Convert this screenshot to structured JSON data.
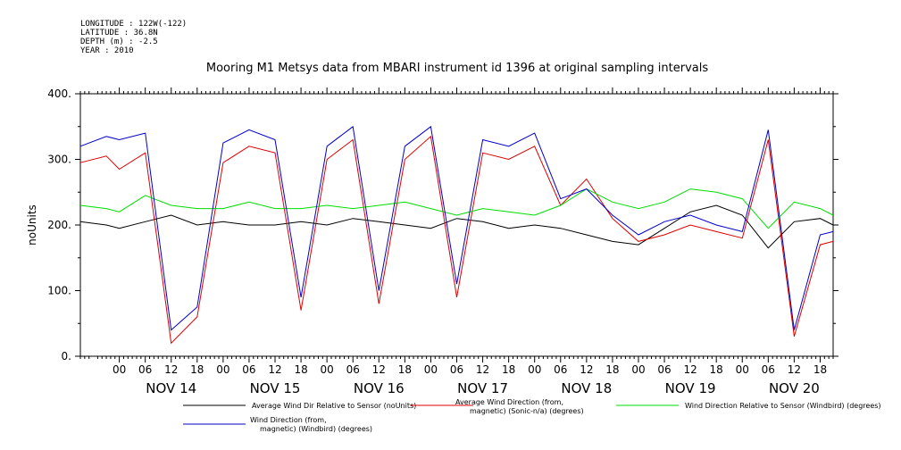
{
  "meta": {
    "longitude": "LONGITUDE : 122W(-122)",
    "latitude": "LATITUDE : 36.8N",
    "depth": "DEPTH (m) : -2.5",
    "year": "YEAR : 2010"
  },
  "chart_data": {
    "type": "line",
    "title": "Mooring M1 Metsys data from MBARI instrument id 1396 at original sampling intervals",
    "ylabel": "noUnits",
    "xlabel": "",
    "ylim": [
      0,
      400
    ],
    "y_ticks": [
      0,
      100,
      200,
      300,
      400
    ],
    "y_tick_labels": [
      "0.",
      "100.",
      "200.",
      "300.",
      "400."
    ],
    "x_range_hours": [
      -9,
      165
    ],
    "x_tick_labels": [
      "00",
      "06",
      "12",
      "18",
      "00",
      "06",
      "12",
      "18",
      "00",
      "06",
      "12",
      "18",
      "00",
      "06",
      "12",
      "18",
      "00",
      "06",
      "12",
      "18",
      "00",
      "06",
      "12",
      "18",
      "00",
      "06",
      "12",
      "18"
    ],
    "day_labels": [
      "NOV 14",
      "NOV 15",
      "NOV 16",
      "NOV 17",
      "NOV 18",
      "NOV 19",
      "NOV 20"
    ],
    "grid": false,
    "legend_position": "bottom",
    "series": [
      {
        "name": "Average Wind Dir Relative to Sensor (noUnits)",
        "color": "#000000",
        "x": [
          -9,
          -3,
          0,
          6,
          12,
          18,
          24,
          30,
          36,
          42,
          48,
          54,
          60,
          66,
          72,
          78,
          84,
          90,
          96,
          102,
          108,
          114,
          120,
          126,
          132,
          138,
          144,
          150,
          156,
          162,
          165
        ],
        "y": [
          205,
          200,
          195,
          205,
          215,
          200,
          205,
          200,
          200,
          205,
          200,
          210,
          205,
          200,
          195,
          210,
          205,
          195,
          200,
          195,
          185,
          175,
          170,
          195,
          220,
          230,
          215,
          165,
          205,
          210,
          200
        ]
      },
      {
        "name": "Average Wind Direction (from, magnetic) (Sonic-n/a) (degrees)",
        "color": "#dd0000",
        "x": [
          -9,
          -3,
          0,
          6,
          12,
          18,
          24,
          30,
          36,
          42,
          48,
          54,
          60,
          66,
          72,
          78,
          84,
          90,
          96,
          102,
          108,
          114,
          120,
          126,
          132,
          138,
          144,
          150,
          156,
          162,
          165
        ],
        "y": [
          295,
          305,
          285,
          310,
          20,
          60,
          295,
          320,
          310,
          70,
          300,
          330,
          80,
          300,
          335,
          90,
          310,
          300,
          320,
          230,
          270,
          210,
          175,
          185,
          200,
          190,
          180,
          330,
          30,
          170,
          175
        ]
      },
      {
        "name": "Wind Direction Relative to Sensor (Windbird) (degrees)",
        "color": "#00dd00",
        "x": [
          -9,
          -3,
          0,
          6,
          12,
          18,
          24,
          30,
          36,
          42,
          48,
          54,
          60,
          66,
          72,
          78,
          84,
          90,
          96,
          102,
          108,
          114,
          120,
          126,
          132,
          138,
          144,
          150,
          156,
          162,
          165
        ],
        "y": [
          230,
          225,
          220,
          245,
          230,
          225,
          225,
          235,
          225,
          225,
          230,
          225,
          230,
          235,
          225,
          215,
          225,
          220,
          215,
          230,
          255,
          235,
          225,
          235,
          255,
          250,
          240,
          195,
          235,
          225,
          215
        ]
      },
      {
        "name": "Wind Direction (from, magnetic) (Windbird) (degrees)",
        "color": "#0000cc",
        "x": [
          -9,
          -3,
          0,
          6,
          12,
          18,
          24,
          30,
          36,
          42,
          48,
          54,
          60,
          66,
          72,
          78,
          84,
          90,
          96,
          102,
          108,
          114,
          120,
          126,
          132,
          138,
          144,
          150,
          156,
          162,
          165
        ],
        "y": [
          320,
          335,
          330,
          340,
          40,
          75,
          325,
          345,
          330,
          90,
          320,
          350,
          100,
          320,
          350,
          110,
          330,
          320,
          340,
          240,
          255,
          215,
          185,
          205,
          215,
          200,
          190,
          345,
          40,
          185,
          190
        ]
      }
    ]
  },
  "legend": {
    "black_label": "Average Wind Dir Relative to Sensor (noUnits)",
    "red_label_1": "Average Wind Direction (from,",
    "red_label_2": "magnetic) (Sonic-n/a) (degrees)",
    "green_label": "Wind Direction Relative to Sensor (Windbird) (degrees)",
    "blue_label_1": "Wind Direction (from,",
    "blue_label_2": "magnetic) (Windbird) (degrees)"
  }
}
